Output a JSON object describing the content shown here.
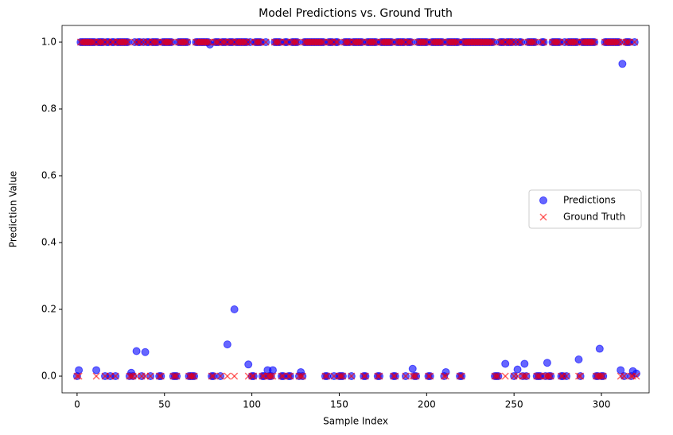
{
  "chart_data": {
    "type": "scatter",
    "title": "Model Predictions vs. Ground Truth",
    "x_label": "Sample Index",
    "y_label": "Prediction Value",
    "xlim": [
      -8.6,
      327.3
    ],
    "ylim": [
      -0.05,
      1.05
    ],
    "xticks": [
      0,
      50,
      100,
      150,
      200,
      250,
      300
    ],
    "yticks": [
      {
        "value": 0,
        "label": "0.0"
      },
      0.2,
      0.4,
      0.6,
      0.8,
      {
        "value": 1,
        "label": "1.0"
      }
    ],
    "legend": "center right",
    "x": [
      0,
      1,
      2,
      3,
      4,
      5,
      6,
      7,
      8,
      9,
      10,
      11,
      12,
      13,
      14,
      15,
      16,
      17,
      18,
      19,
      20,
      21,
      22,
      23,
      24,
      25,
      26,
      27,
      28,
      29,
      30,
      31,
      32,
      33,
      34,
      35,
      36,
      37,
      38,
      39,
      40,
      41,
      42,
      43,
      44,
      45,
      46,
      47,
      48,
      49,
      50,
      51,
      52,
      53,
      54,
      55,
      56,
      57,
      58,
      59,
      60,
      61,
      62,
      63,
      64,
      65,
      66,
      67,
      68,
      69,
      70,
      71,
      72,
      73,
      74,
      75,
      76,
      77,
      78,
      79,
      80,
      81,
      82,
      83,
      84,
      85,
      86,
      87,
      88,
      89,
      90,
      91,
      92,
      93,
      94,
      95,
      96,
      97,
      98,
      99,
      100,
      101,
      102,
      103,
      104,
      105,
      106,
      107,
      108,
      109,
      110,
      111,
      112,
      113,
      114,
      115,
      116,
      117,
      118,
      119,
      120,
      121,
      122,
      123,
      124,
      125,
      126,
      127,
      128,
      129,
      130,
      131,
      132,
      133,
      134,
      135,
      136,
      137,
      138,
      139,
      140,
      141,
      142,
      143,
      144,
      145,
      146,
      147,
      148,
      149,
      150,
      151,
      152,
      153,
      154,
      155,
      156,
      157,
      158,
      159,
      160,
      161,
      162,
      163,
      164,
      165,
      166,
      167,
      168,
      169,
      170,
      171,
      172,
      173,
      174,
      175,
      176,
      177,
      178,
      179,
      180,
      181,
      182,
      183,
      184,
      185,
      186,
      187,
      188,
      189,
      190,
      191,
      192,
      193,
      194,
      195,
      196,
      197,
      198,
      199,
      200,
      201,
      202,
      203,
      204,
      205,
      206,
      207,
      208,
      209,
      210,
      211,
      212,
      213,
      214,
      215,
      216,
      217,
      218,
      219,
      220,
      221,
      222,
      223,
      224,
      225,
      226,
      227,
      228,
      229,
      230,
      231,
      232,
      233,
      234,
      235,
      236,
      237,
      238,
      239,
      240,
      241,
      242,
      243,
      244,
      245,
      246,
      247,
      248,
      249,
      250,
      251,
      252,
      253,
      254,
      255,
      256,
      257,
      258,
      259,
      260,
      261,
      262,
      263,
      264,
      265,
      266,
      267,
      268,
      269,
      270,
      271,
      272,
      273,
      274,
      275,
      276,
      277,
      278,
      279,
      280,
      281,
      282,
      283,
      284,
      285,
      286,
      287,
      288,
      289,
      290,
      291,
      292,
      293,
      294,
      295,
      296,
      297,
      298,
      299,
      300,
      301,
      302,
      303,
      304,
      305,
      306,
      307,
      308,
      309,
      310,
      311,
      312,
      313,
      314,
      315,
      316,
      317,
      318,
      319,
      320
    ],
    "series": [
      {
        "name": "Predictions",
        "color": "#0000ff",
        "marker": "o",
        "values": [
          0,
          0.018,
          1,
          1,
          1,
          1,
          1,
          1,
          1,
          1,
          1,
          0.018,
          1,
          1,
          1,
          1,
          0,
          1,
          1,
          0,
          1,
          1,
          0,
          1,
          1,
          1,
          1,
          1,
          1,
          1,
          0,
          0.01,
          0,
          1,
          0.075,
          1,
          1,
          0,
          1,
          0.072,
          1,
          1,
          0,
          1,
          1,
          1,
          1,
          0,
          0,
          1,
          1,
          1,
          1,
          1,
          1,
          0,
          0,
          0,
          1,
          1,
          1,
          1,
          1,
          1,
          0,
          0,
          0,
          0,
          1,
          1,
          1,
          1,
          1,
          1,
          1,
          1,
          0.993,
          0,
          0,
          1,
          1,
          1,
          0,
          1,
          1,
          1,
          0.095,
          1,
          1,
          1,
          0.2,
          1,
          1,
          1,
          1,
          1,
          1,
          1,
          0.035,
          1,
          0,
          0,
          1,
          1,
          1,
          1,
          0,
          0,
          1,
          0.018,
          0,
          0,
          0.018,
          1,
          1,
          1,
          1,
          0,
          0,
          1,
          1,
          0,
          0,
          1,
          1,
          1,
          1,
          0,
          0.012,
          0,
          1,
          1,
          1,
          1,
          1,
          1,
          1,
          1,
          1,
          1,
          1,
          1,
          0,
          0,
          1,
          1,
          1,
          0,
          1,
          1,
          0,
          0,
          0,
          1,
          1,
          1,
          1,
          0,
          1,
          1,
          1,
          1,
          1,
          1,
          0,
          0,
          1,
          1,
          1,
          1,
          1,
          1,
          0,
          0,
          1,
          1,
          1,
          1,
          1,
          1,
          1,
          0,
          0,
          1,
          1,
          1,
          1,
          1,
          0,
          1,
          1,
          1,
          0.022,
          0,
          0,
          1,
          1,
          1,
          1,
          1,
          1,
          0,
          0,
          1,
          1,
          1,
          1,
          1,
          1,
          1,
          0,
          0.012,
          1,
          1,
          1,
          1,
          1,
          1,
          1,
          0,
          0,
          1,
          1,
          1,
          1,
          1,
          1,
          1,
          1,
          1,
          1,
          1,
          1,
          1,
          1,
          1,
          1,
          1,
          1,
          0,
          0,
          0,
          1,
          1,
          1,
          0.037,
          1,
          1,
          1,
          1,
          0,
          1,
          0.02,
          1,
          1,
          0,
          0.037,
          0,
          1,
          1,
          1,
          1,
          1,
          0,
          0,
          0,
          1,
          1,
          0,
          0.04,
          0,
          0,
          1,
          1,
          1,
          1,
          1,
          0,
          0,
          1,
          0,
          1,
          1,
          1,
          1,
          1,
          1,
          0.05,
          0,
          1,
          1,
          1,
          1,
          1,
          1,
          1,
          1,
          0,
          0,
          0.082,
          0,
          0,
          1,
          1,
          1,
          1,
          1,
          1,
          1,
          1,
          1,
          0.018,
          0.935,
          0,
          1,
          1,
          1,
          0,
          0.015,
          1,
          0.008
        ]
      },
      {
        "name": "Ground Truth",
        "color": "#ff0000",
        "marker": "x",
        "values": [
          0,
          0,
          1,
          1,
          1,
          1,
          1,
          1,
          1,
          1,
          1,
          0,
          1,
          1,
          1,
          1,
          0,
          1,
          1,
          0,
          1,
          1,
          0,
          1,
          1,
          1,
          1,
          1,
          1,
          1,
          0,
          0,
          0,
          1,
          0,
          1,
          1,
          0,
          1,
          0,
          1,
          1,
          0,
          1,
          1,
          1,
          1,
          0,
          0,
          1,
          1,
          1,
          1,
          1,
          1,
          0,
          0,
          0,
          1,
          1,
          1,
          1,
          1,
          1,
          0,
          0,
          0,
          0,
          1,
          1,
          1,
          1,
          1,
          1,
          1,
          1,
          1,
          0,
          0,
          1,
          1,
          1,
          0,
          1,
          1,
          1,
          0,
          1,
          1,
          1,
          0,
          1,
          1,
          1,
          1,
          1,
          1,
          1,
          0,
          1,
          0,
          0,
          1,
          1,
          1,
          1,
          0,
          0,
          1,
          0,
          0,
          0,
          0,
          1,
          1,
          1,
          1,
          0,
          0,
          1,
          1,
          0,
          0,
          1,
          1,
          1,
          1,
          0,
          0,
          0,
          1,
          1,
          1,
          1,
          1,
          1,
          1,
          1,
          1,
          1,
          1,
          1,
          0,
          0,
          1,
          1,
          1,
          0,
          1,
          1,
          0,
          0,
          0,
          1,
          1,
          1,
          1,
          0,
          1,
          1,
          1,
          1,
          1,
          1,
          0,
          0,
          1,
          1,
          1,
          1,
          1,
          1,
          0,
          0,
          1,
          1,
          1,
          1,
          1,
          1,
          1,
          0,
          0,
          1,
          1,
          1,
          1,
          1,
          0,
          1,
          1,
          1,
          0,
          0,
          0,
          1,
          1,
          1,
          1,
          1,
          1,
          0,
          0,
          1,
          1,
          1,
          1,
          1,
          1,
          1,
          0,
          0,
          1,
          1,
          1,
          1,
          1,
          1,
          1,
          0,
          0,
          1,
          1,
          1,
          1,
          1,
          1,
          1,
          1,
          1,
          1,
          1,
          1,
          1,
          1,
          1,
          1,
          1,
          1,
          0,
          0,
          0,
          1,
          1,
          1,
          0,
          1,
          1,
          1,
          1,
          0,
          1,
          0,
          1,
          1,
          0,
          0,
          0,
          1,
          1,
          1,
          1,
          1,
          0,
          0,
          0,
          1,
          1,
          0,
          0,
          0,
          0,
          1,
          1,
          1,
          1,
          1,
          0,
          0,
          1,
          0,
          1,
          1,
          1,
          1,
          1,
          1,
          0,
          0,
          1,
          1,
          1,
          1,
          1,
          1,
          1,
          1,
          0,
          0,
          0,
          0,
          0,
          1,
          1,
          1,
          1,
          1,
          1,
          1,
          1,
          1,
          0,
          1,
          0,
          1,
          1,
          1,
          0,
          0,
          1,
          0
        ]
      }
    ]
  }
}
